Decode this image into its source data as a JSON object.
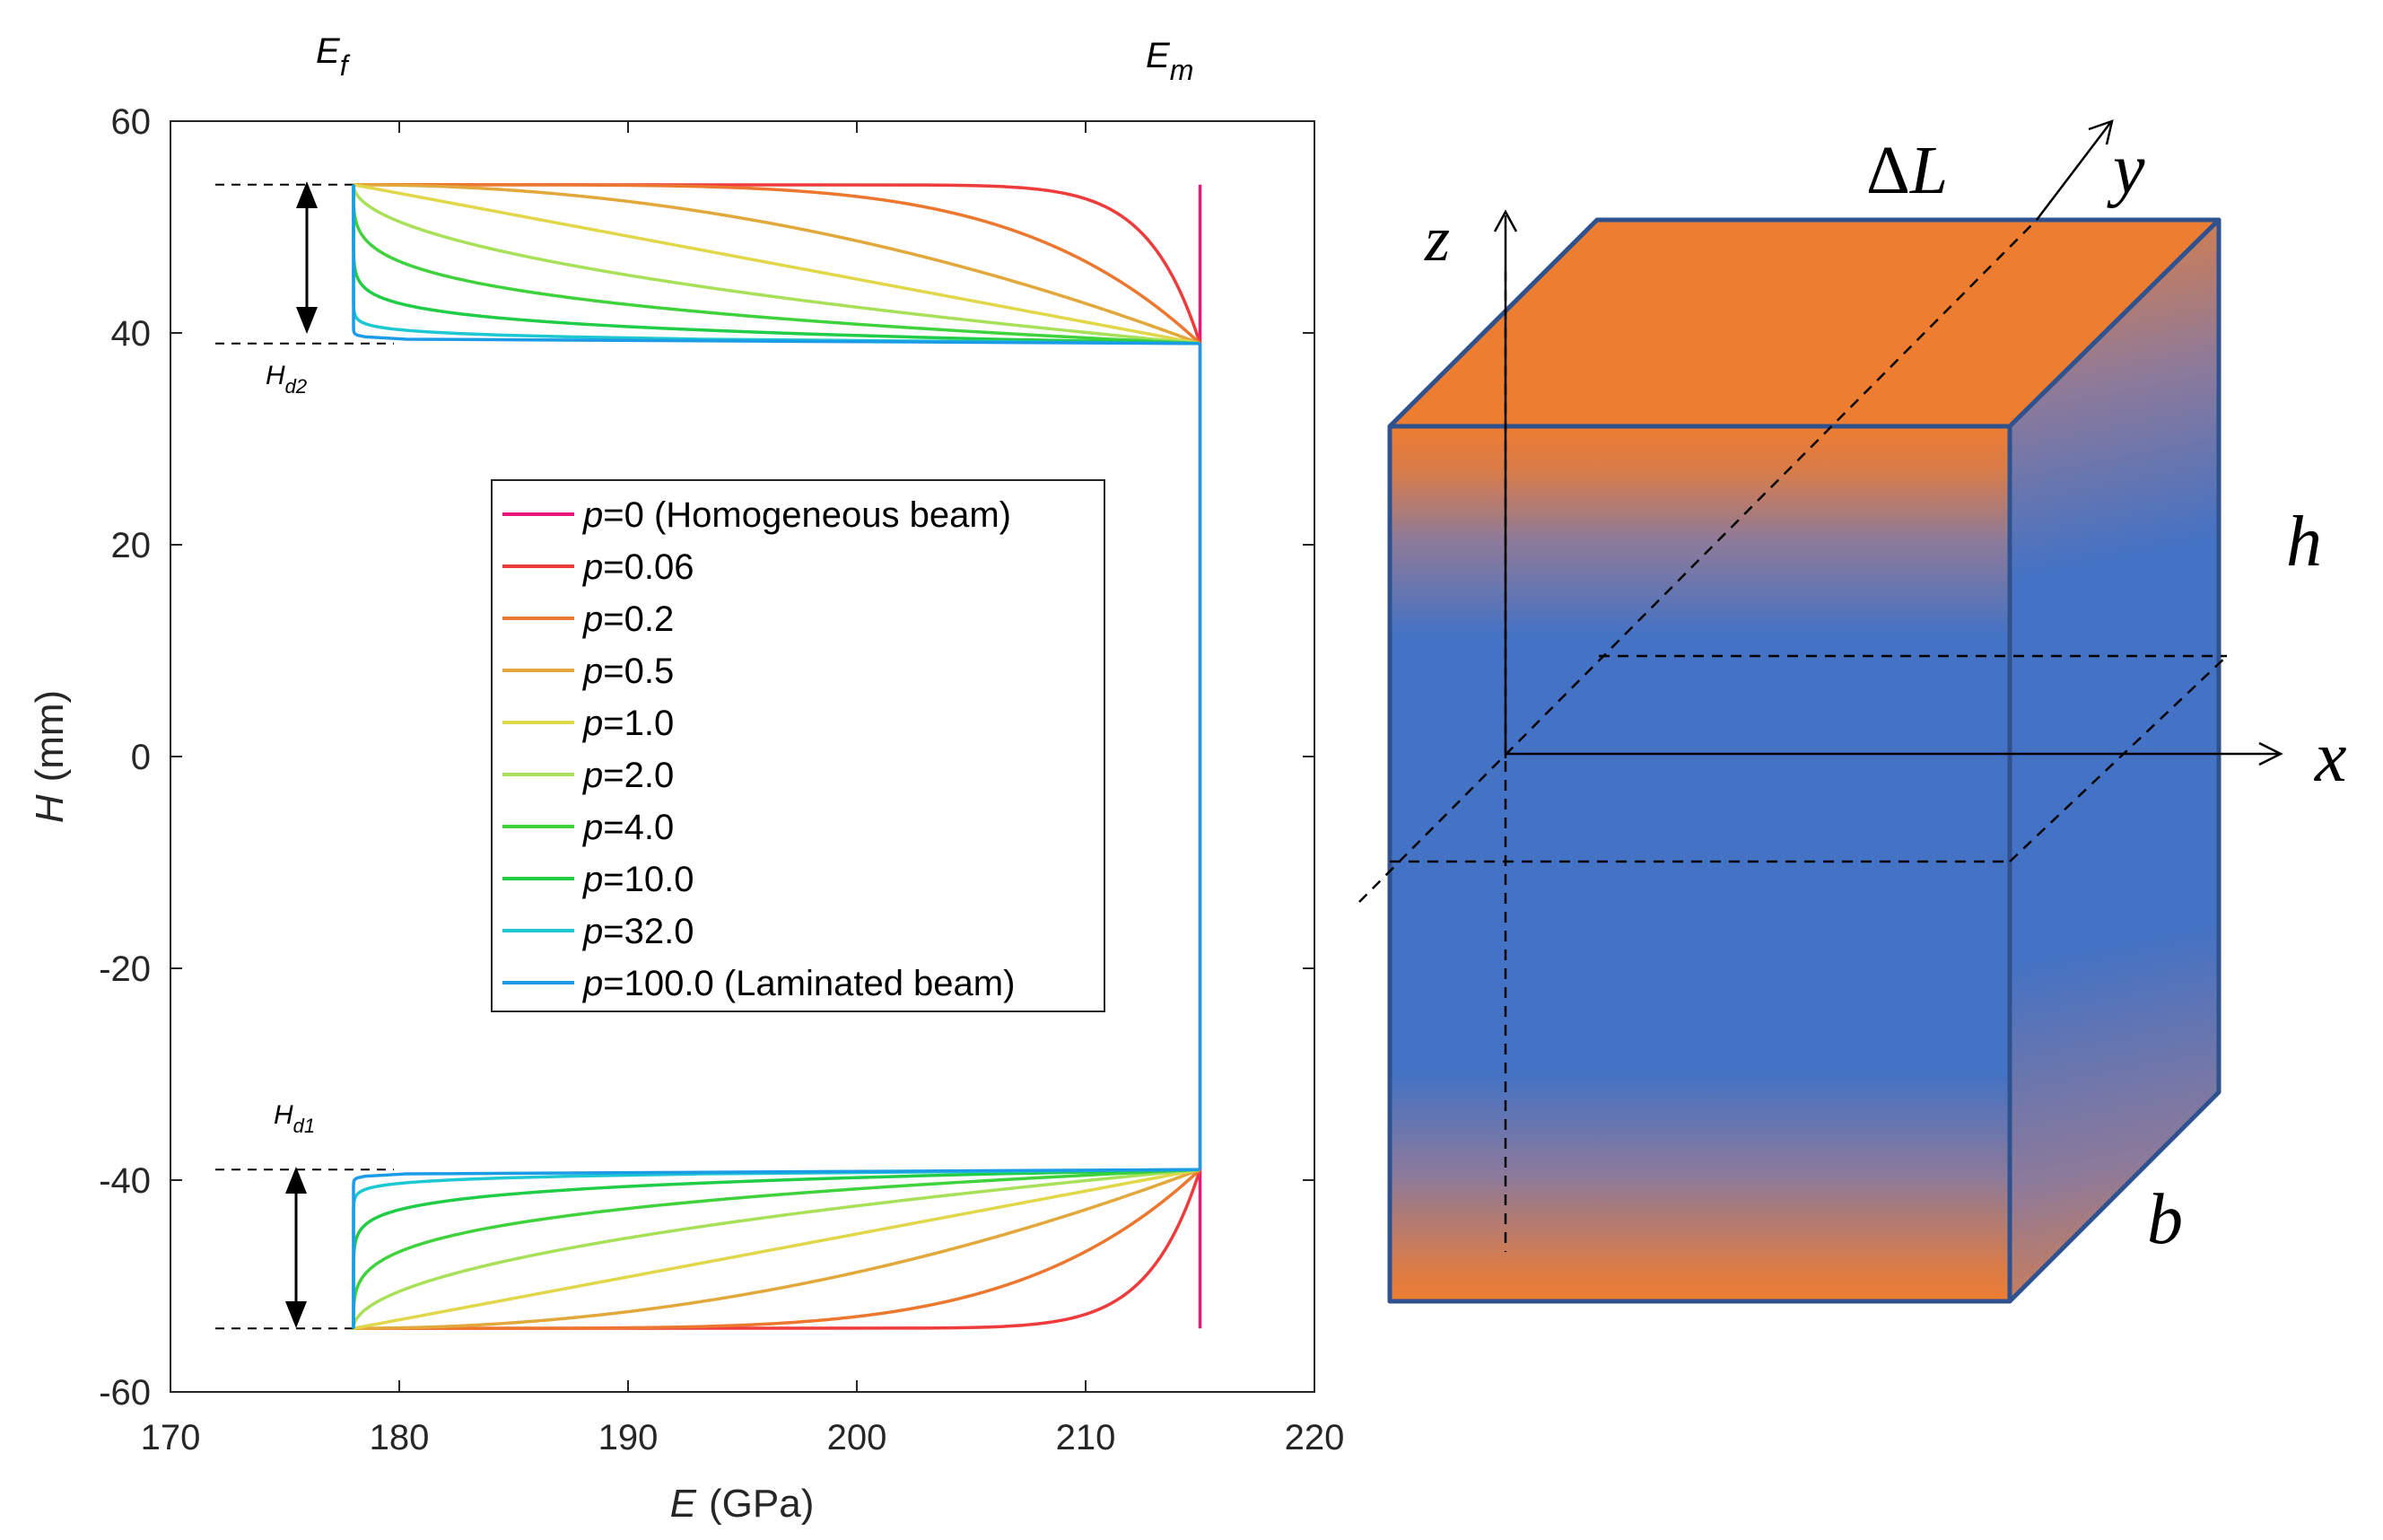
{
  "chart_data": {
    "type": "line",
    "xlabel": {
      "var": "E",
      "unit": "(GPa)"
    },
    "ylabel": {
      "var": "H",
      "unit": "(mm)"
    },
    "xlim": [
      170,
      220
    ],
    "ylim": [
      -60,
      60
    ],
    "xticks": [
      "170",
      "180",
      "190",
      "200",
      "210",
      "220"
    ],
    "yticks": [
      "60",
      "40",
      "20",
      "0",
      "-20",
      "-40",
      "-60"
    ],
    "E_f": 178,
    "E_m": 215,
    "h_half": 54,
    "h_core": 39,
    "series": [
      {
        "p_label": "0 (Homogeneous beam)",
        "p": 0,
        "color": "#E6197A"
      },
      {
        "p_label": "0.06",
        "p": 0.06,
        "color": "#EE3B3B"
      },
      {
        "p_label": "0.2",
        "p": 0.2,
        "color": "#EC7830"
      },
      {
        "p_label": "0.5",
        "p": 0.5,
        "color": "#E2A83C"
      },
      {
        "p_label": "1.0",
        "p": 1.0,
        "color": "#E0D84A"
      },
      {
        "p_label": "2.0",
        "p": 2.0,
        "color": "#A8E05A"
      },
      {
        "p_label": "4.0",
        "p": 4.0,
        "color": "#3FD23C"
      },
      {
        "p_label": "10.0",
        "p": 10.0,
        "color": "#21CC46"
      },
      {
        "p_label": "32.0",
        "p": 32.0,
        "color": "#1EC8D2"
      },
      {
        "p_label": "100.0 (Laminated beam)",
        "p": 100.0,
        "color": "#1C9BE6"
      }
    ],
    "legend_prefix": "p",
    "legend_placement": "center"
  },
  "annotations": {
    "ef": {
      "main": "E",
      "sub": "f"
    },
    "em": {
      "main": "E",
      "sub": "m"
    },
    "hd2": {
      "main": "H",
      "sub": "d2"
    },
    "hd1": {
      "main": "H",
      "sub": "d1"
    }
  },
  "diagram": {
    "labels": {
      "delta_l": "ΔL",
      "y": "y",
      "z": "z",
      "h": "h",
      "x": "x",
      "b": "b"
    },
    "colors": {
      "orange": "#ED7D31",
      "blue": "#4472C4",
      "edge": "#2F528F"
    }
  }
}
